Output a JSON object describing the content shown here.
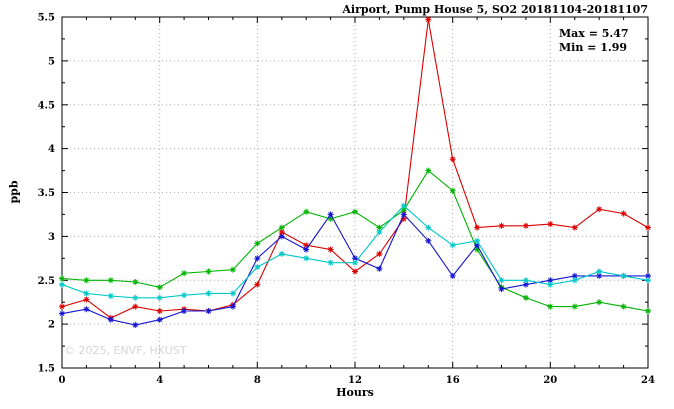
{
  "chart_data": {
    "type": "line",
    "title": "Airport, Pump House 5, SO2 20181104-20181107",
    "xlabel": "Hours",
    "ylabel": "ppb",
    "xlim": [
      0,
      24
    ],
    "ylim": [
      1.5,
      5.5
    ],
    "grid": true,
    "legend_position": "none",
    "xticks": {
      "values": [
        0,
        4,
        8,
        12,
        16,
        20,
        24
      ],
      "labels": [
        "0",
        "4",
        "8",
        "12",
        "16",
        "20",
        "24"
      ]
    },
    "yticks": {
      "values": [
        1.5,
        2,
        2.5,
        3,
        3.5,
        4,
        4.5,
        5,
        5.5
      ],
      "labels": [
        "1.5",
        "2",
        "2.5",
        "3",
        "3.5",
        "4",
        "4.5",
        "5",
        "5.5"
      ]
    },
    "x": [
      0,
      1,
      2,
      3,
      4,
      5,
      6,
      7,
      8,
      9,
      10,
      11,
      12,
      13,
      14,
      15,
      16,
      17,
      18,
      19,
      20,
      21,
      22,
      23,
      24
    ],
    "series": [
      {
        "name": "red",
        "color": "#dd0000",
        "marker": "asterisk",
        "values": [
          2.2,
          2.28,
          2.07,
          2.2,
          2.15,
          2.17,
          2.15,
          2.22,
          2.45,
          3.05,
          2.9,
          2.85,
          2.6,
          2.8,
          3.2,
          5.47,
          3.88,
          3.1,
          3.12,
          3.12,
          3.14,
          3.1,
          3.31,
          3.26,
          3.1
        ]
      },
      {
        "name": "green",
        "color": "#00b400",
        "marker": "asterisk",
        "values": [
          2.52,
          2.5,
          2.5,
          2.48,
          2.42,
          2.58,
          2.6,
          2.62,
          2.92,
          3.1,
          3.28,
          3.2,
          3.28,
          3.1,
          3.3,
          3.75,
          3.52,
          2.85,
          2.42,
          2.3,
          2.2,
          2.2,
          2.25,
          2.2,
          2.15
        ]
      },
      {
        "name": "blue",
        "color": "#1414d2",
        "marker": "asterisk",
        "values": [
          2.12,
          2.17,
          2.05,
          1.99,
          2.05,
          2.15,
          2.15,
          2.2,
          2.75,
          3.0,
          2.85,
          3.25,
          2.75,
          2.63,
          3.25,
          2.95,
          2.55,
          2.9,
          2.4,
          2.45,
          2.5,
          2.55,
          2.55,
          2.55,
          2.55
        ]
      },
      {
        "name": "cyan",
        "color": "#00c8c8",
        "marker": "asterisk",
        "values": [
          2.45,
          2.35,
          2.32,
          2.3,
          2.3,
          2.33,
          2.35,
          2.35,
          2.65,
          2.8,
          2.75,
          2.7,
          2.7,
          3.05,
          3.35,
          3.1,
          2.9,
          2.95,
          2.5,
          2.5,
          2.45,
          2.5,
          2.6,
          2.55,
          2.5
        ]
      }
    ],
    "annotations": {
      "max": "Max = 5.47",
      "min": "Min = 1.99"
    },
    "watermark": "© 2025, ENVF, HKUST"
  }
}
